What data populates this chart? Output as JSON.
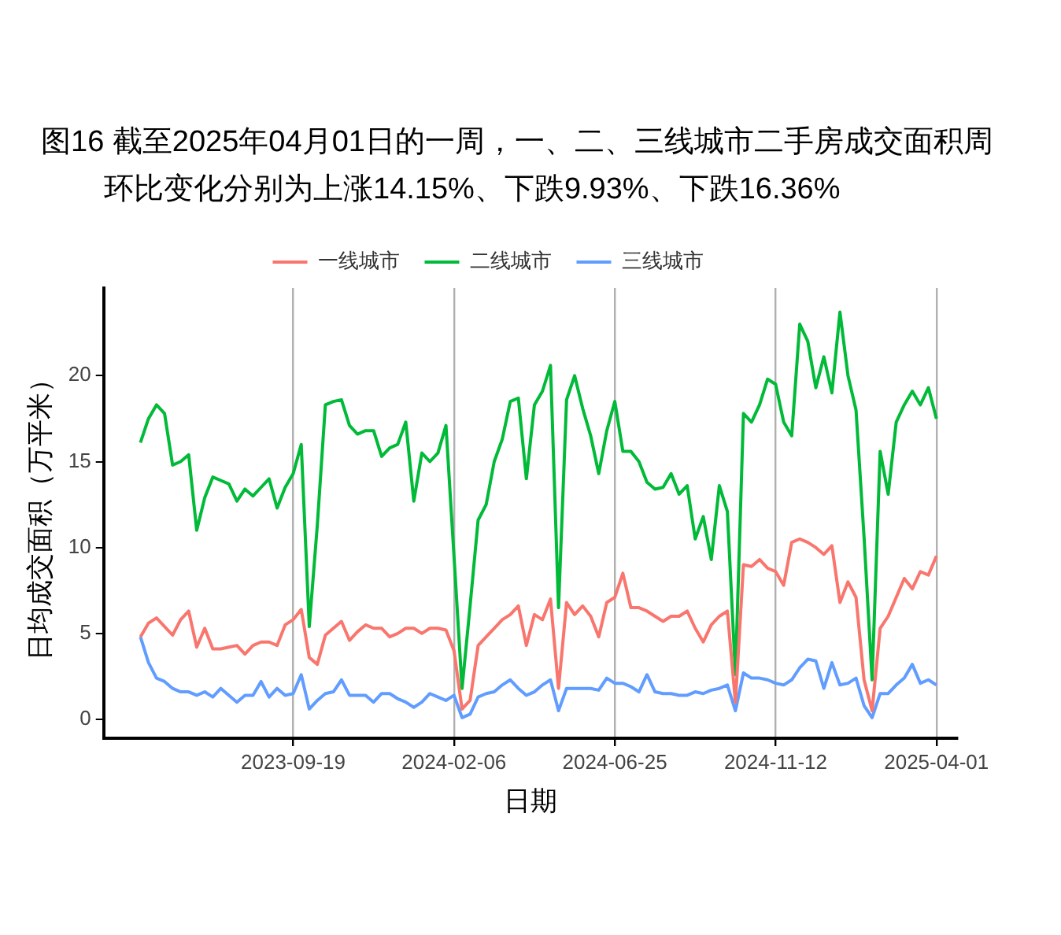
{
  "chart_data": {
    "type": "line",
    "title": "图16  截至2025年04月01日的一周，一、二、三线城市二手房成交面积周环比变化分别为上涨14.15%、下跌9.93%、下跌16.36%",
    "xlabel": "日期",
    "ylabel": "日均成交面积（万平米）",
    "x": [
      "2023-05-09",
      "2023-05-16",
      "2023-05-23",
      "2023-05-30",
      "2023-06-06",
      "2023-06-13",
      "2023-06-20",
      "2023-06-27",
      "2023-07-04",
      "2023-07-11",
      "2023-07-18",
      "2023-07-25",
      "2023-08-01",
      "2023-08-08",
      "2023-08-15",
      "2023-08-22",
      "2023-08-29",
      "2023-09-05",
      "2023-09-12",
      "2023-09-19",
      "2023-09-26",
      "2023-10-03",
      "2023-10-10",
      "2023-10-17",
      "2023-10-24",
      "2023-10-31",
      "2023-11-07",
      "2023-11-14",
      "2023-11-21",
      "2023-11-28",
      "2023-12-05",
      "2023-12-12",
      "2023-12-19",
      "2023-12-26",
      "2024-01-02",
      "2024-01-09",
      "2024-01-16",
      "2024-01-23",
      "2024-01-30",
      "2024-02-06",
      "2024-02-13",
      "2024-02-20",
      "2024-02-27",
      "2024-03-05",
      "2024-03-12",
      "2024-03-19",
      "2024-03-26",
      "2024-04-02",
      "2024-04-09",
      "2024-04-16",
      "2024-04-23",
      "2024-04-30",
      "2024-05-07",
      "2024-05-14",
      "2024-05-21",
      "2024-05-28",
      "2024-06-04",
      "2024-06-11",
      "2024-06-18",
      "2024-06-25",
      "2024-07-02",
      "2024-07-09",
      "2024-07-16",
      "2024-07-23",
      "2024-07-30",
      "2024-08-06",
      "2024-08-13",
      "2024-08-20",
      "2024-08-27",
      "2024-09-03",
      "2024-09-10",
      "2024-09-17",
      "2024-09-24",
      "2024-10-01",
      "2024-10-08",
      "2024-10-15",
      "2024-10-22",
      "2024-10-29",
      "2024-11-05",
      "2024-11-12",
      "2024-11-19",
      "2024-11-26",
      "2024-12-03",
      "2024-12-10",
      "2024-12-17",
      "2024-12-24",
      "2024-12-31",
      "2025-01-07",
      "2025-01-14",
      "2025-01-21",
      "2025-01-28",
      "2025-02-04",
      "2025-02-11",
      "2025-02-18",
      "2025-02-25",
      "2025-03-04",
      "2025-03-11",
      "2025-03-18",
      "2025-03-25",
      "2025-04-01"
    ],
    "series": [
      {
        "name": "一线城市",
        "color": "#f8766d",
        "values": [
          4.8,
          5.6,
          5.9,
          5.4,
          4.9,
          5.8,
          6.3,
          4.2,
          5.3,
          4.1,
          4.1,
          4.2,
          4.3,
          3.8,
          4.3,
          4.5,
          4.5,
          4.3,
          5.5,
          5.8,
          6.4,
          3.6,
          3.2,
          4.9,
          5.3,
          5.7,
          4.6,
          5.1,
          5.5,
          5.3,
          5.3,
          4.8,
          5.0,
          5.3,
          5.3,
          5.0,
          5.3,
          5.3,
          5.2,
          4.0,
          0.6,
          1.1,
          4.3,
          4.8,
          5.3,
          5.8,
          6.1,
          6.6,
          4.3,
          6.1,
          5.8,
          7.0,
          1.8,
          6.8,
          6.1,
          6.6,
          6.0,
          4.8,
          6.8,
          7.1,
          8.5,
          6.5,
          6.5,
          6.3,
          6.0,
          5.7,
          6.0,
          6.0,
          6.3,
          5.3,
          4.5,
          5.5,
          6.0,
          6.3,
          1.0,
          9.0,
          8.9,
          9.3,
          8.8,
          8.6,
          7.8,
          10.3,
          10.5,
          10.3,
          10.0,
          9.6,
          10.1,
          6.8,
          8.0,
          7.1,
          2.3,
          0.5,
          5.3,
          6.0,
          7.1,
          8.2,
          7.6,
          8.6,
          8.4,
          9.5
        ]
      },
      {
        "name": "二线城市",
        "color": "#00ba38",
        "values": [
          16.1,
          17.5,
          18.3,
          17.8,
          14.8,
          15.0,
          15.4,
          11.0,
          12.9,
          14.1,
          13.9,
          13.7,
          12.7,
          13.4,
          13.0,
          13.5,
          14.0,
          12.3,
          13.5,
          14.3,
          16.0,
          5.4,
          11.3,
          18.3,
          18.5,
          18.6,
          17.1,
          16.6,
          16.8,
          16.8,
          15.3,
          15.8,
          16.0,
          17.3,
          12.7,
          15.5,
          15.0,
          15.5,
          17.1,
          9.5,
          1.8,
          6.6,
          11.6,
          12.5,
          15.0,
          16.3,
          18.5,
          18.7,
          14.0,
          18.3,
          19.1,
          20.6,
          6.5,
          18.6,
          20.0,
          18.1,
          16.5,
          14.3,
          16.8,
          18.5,
          15.6,
          15.6,
          15.0,
          13.8,
          13.4,
          13.5,
          14.3,
          13.1,
          13.6,
          10.5,
          11.8,
          9.3,
          13.6,
          12.1,
          2.6,
          17.8,
          17.3,
          18.3,
          19.8,
          19.5,
          17.3,
          16.5,
          23.0,
          22.0,
          19.3,
          21.1,
          19.0,
          23.7,
          20.0,
          18.0,
          10.6,
          2.3,
          15.6,
          13.1,
          17.3,
          18.3,
          19.1,
          18.3,
          19.3,
          17.5
        ]
      },
      {
        "name": "三线城市",
        "color": "#619cff",
        "values": [
          4.8,
          3.3,
          2.4,
          2.2,
          1.8,
          1.6,
          1.6,
          1.4,
          1.6,
          1.3,
          1.8,
          1.4,
          1.0,
          1.4,
          1.4,
          2.2,
          1.3,
          1.8,
          1.4,
          1.5,
          2.6,
          0.6,
          1.1,
          1.5,
          1.6,
          2.3,
          1.4,
          1.4,
          1.4,
          1.0,
          1.5,
          1.5,
          1.2,
          1.0,
          0.7,
          1.0,
          1.5,
          1.3,
          1.1,
          1.4,
          0.1,
          0.3,
          1.3,
          1.5,
          1.6,
          2.0,
          2.3,
          1.8,
          1.4,
          1.6,
          2.0,
          2.3,
          0.5,
          1.8,
          1.8,
          1.8,
          1.8,
          1.7,
          2.4,
          2.1,
          2.1,
          1.9,
          1.6,
          2.6,
          1.6,
          1.5,
          1.5,
          1.4,
          1.4,
          1.6,
          1.5,
          1.7,
          1.8,
          2.0,
          0.5,
          2.7,
          2.4,
          2.4,
          2.3,
          2.1,
          2.0,
          2.3,
          3.0,
          3.5,
          3.4,
          1.8,
          3.3,
          2.0,
          2.1,
          2.4,
          0.8,
          0.1,
          1.5,
          1.5,
          2.0,
          2.4,
          3.2,
          2.1,
          2.3,
          2.0
        ]
      }
    ],
    "xlim": [
      "2023-04-07",
      "2025-04-19"
    ],
    "xticks": [
      "2023-09-19",
      "2024-02-06",
      "2024-06-25",
      "2024-11-12",
      "2025-04-01"
    ],
    "ylim": [
      -1.1,
      25.1
    ],
    "yticks": [
      0,
      5,
      10,
      15,
      20
    ],
    "grid": "x",
    "legend": "top",
    "marker": "none",
    "line_style": "solid"
  }
}
